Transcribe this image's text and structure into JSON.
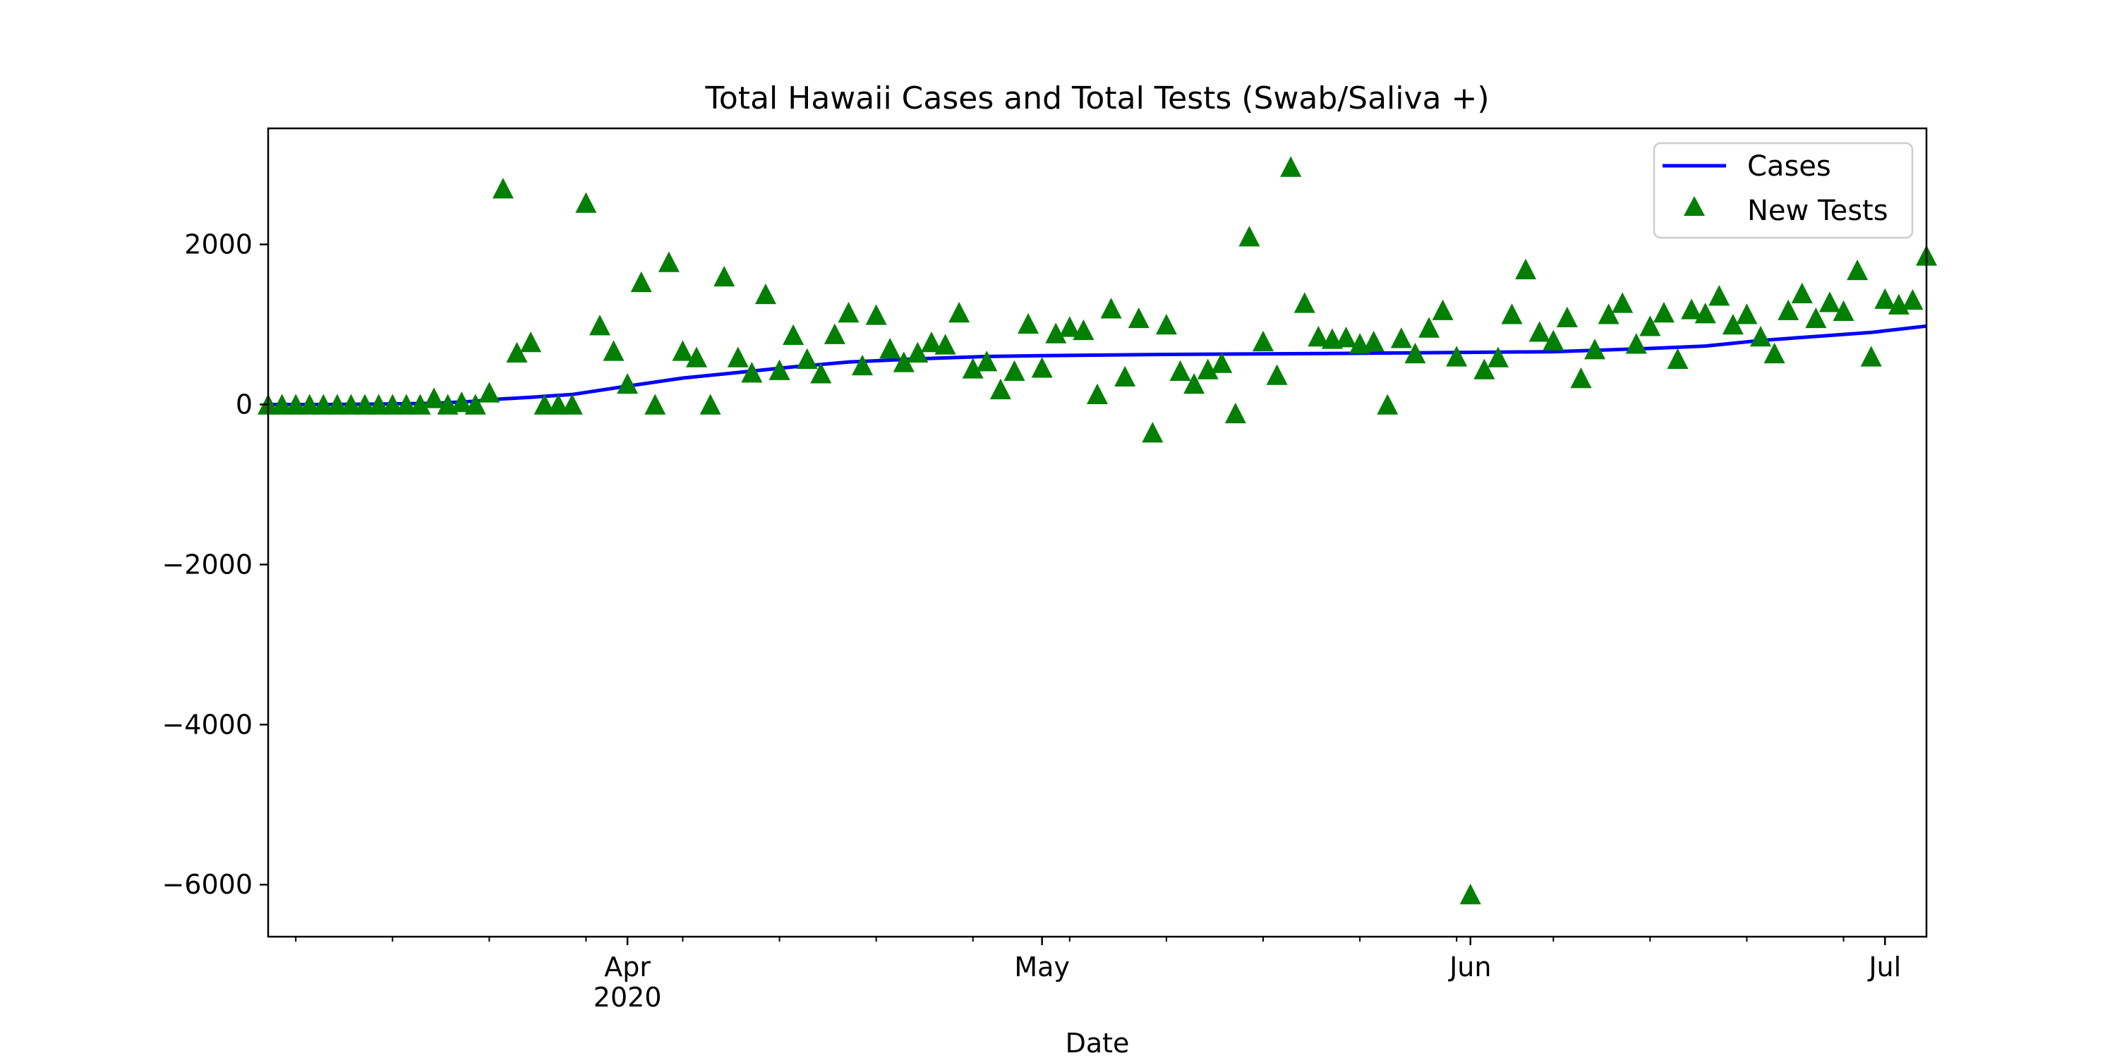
{
  "chart_data": {
    "type": "line",
    "title": "Total Hawaii Cases and Total Tests (Swab/Saliva +)",
    "xlabel": "Date",
    "ylabel": "",
    "x_range": [
      "2020-03-06",
      "2020-07-04"
    ],
    "ylim": [
      -6650,
      3450
    ],
    "y_ticks": [
      2000,
      0,
      -2000,
      -4000,
      -6000
    ],
    "y_tick_labels": [
      "2000",
      "0",
      "−2000",
      "−4000",
      "−6000"
    ],
    "x_major_ticks": [
      {
        "date": "2020-04-01",
        "label": "Apr",
        "sublabel": "2020"
      },
      {
        "date": "2020-05-01",
        "label": "May",
        "sublabel": ""
      },
      {
        "date": "2020-06-01",
        "label": "Jun",
        "sublabel": ""
      },
      {
        "date": "2020-07-01",
        "label": "Jul",
        "sublabel": ""
      }
    ],
    "x_minor_ticks": [
      "2020-03-08",
      "2020-03-15",
      "2020-03-22",
      "2020-03-29",
      "2020-04-05",
      "2020-04-12",
      "2020-04-19",
      "2020-04-26",
      "2020-05-03",
      "2020-05-10",
      "2020-05-17",
      "2020-05-24",
      "2020-05-31",
      "2020-06-07",
      "2020-06-14",
      "2020-06-21",
      "2020-06-28"
    ],
    "grid": false,
    "legend_position": "top-right",
    "series": [
      {
        "name": "Cases",
        "kind": "line",
        "color": "#0000ff",
        "points": [
          {
            "x": "2020-03-06",
            "y": 0
          },
          {
            "x": "2020-03-10",
            "y": 0
          },
          {
            "x": "2020-03-14",
            "y": 5
          },
          {
            "x": "2020-03-18",
            "y": 15
          },
          {
            "x": "2020-03-21",
            "y": 40
          },
          {
            "x": "2020-03-22",
            "y": 60
          },
          {
            "x": "2020-03-25",
            "y": 90
          },
          {
            "x": "2020-03-28",
            "y": 125
          },
          {
            "x": "2020-04-01",
            "y": 230
          },
          {
            "x": "2020-04-05",
            "y": 330
          },
          {
            "x": "2020-04-09",
            "y": 400
          },
          {
            "x": "2020-04-13",
            "y": 470
          },
          {
            "x": "2020-04-17",
            "y": 530
          },
          {
            "x": "2020-04-22",
            "y": 570
          },
          {
            "x": "2020-04-27",
            "y": 600
          },
          {
            "x": "2020-05-01",
            "y": 610
          },
          {
            "x": "2020-05-10",
            "y": 625
          },
          {
            "x": "2020-05-20",
            "y": 635
          },
          {
            "x": "2020-05-31",
            "y": 650
          },
          {
            "x": "2020-06-07",
            "y": 660
          },
          {
            "x": "2020-06-14",
            "y": 700
          },
          {
            "x": "2020-06-18",
            "y": 730
          },
          {
            "x": "2020-06-22",
            "y": 800
          },
          {
            "x": "2020-06-26",
            "y": 850
          },
          {
            "x": "2020-06-30",
            "y": 900
          },
          {
            "x": "2020-07-04",
            "y": 980
          }
        ]
      },
      {
        "name": "New Tests",
        "kind": "scatter",
        "marker": "triangle",
        "color": "#008000",
        "points": [
          {
            "x": "2020-03-06",
            "y": 0
          },
          {
            "x": "2020-03-07",
            "y": 0
          },
          {
            "x": "2020-03-08",
            "y": 0
          },
          {
            "x": "2020-03-09",
            "y": 0
          },
          {
            "x": "2020-03-10",
            "y": 0
          },
          {
            "x": "2020-03-11",
            "y": 0
          },
          {
            "x": "2020-03-12",
            "y": 0
          },
          {
            "x": "2020-03-13",
            "y": 0
          },
          {
            "x": "2020-03-14",
            "y": 0
          },
          {
            "x": "2020-03-15",
            "y": 0
          },
          {
            "x": "2020-03-16",
            "y": 0
          },
          {
            "x": "2020-03-17",
            "y": 0
          },
          {
            "x": "2020-03-18",
            "y": 80
          },
          {
            "x": "2020-03-19",
            "y": 0
          },
          {
            "x": "2020-03-20",
            "y": 30
          },
          {
            "x": "2020-03-21",
            "y": 0
          },
          {
            "x": "2020-03-22",
            "y": 150
          },
          {
            "x": "2020-03-23",
            "y": 2700
          },
          {
            "x": "2020-03-24",
            "y": 650
          },
          {
            "x": "2020-03-25",
            "y": 780
          },
          {
            "x": "2020-03-26",
            "y": 0
          },
          {
            "x": "2020-03-27",
            "y": 0
          },
          {
            "x": "2020-03-28",
            "y": 0
          },
          {
            "x": "2020-03-29",
            "y": 2520
          },
          {
            "x": "2020-03-30",
            "y": 990
          },
          {
            "x": "2020-03-31",
            "y": 670
          },
          {
            "x": "2020-04-01",
            "y": 260
          },
          {
            "x": "2020-04-02",
            "y": 1530
          },
          {
            "x": "2020-04-03",
            "y": 0
          },
          {
            "x": "2020-04-04",
            "y": 1780
          },
          {
            "x": "2020-04-05",
            "y": 670
          },
          {
            "x": "2020-04-06",
            "y": 590
          },
          {
            "x": "2020-04-07",
            "y": 0
          },
          {
            "x": "2020-04-08",
            "y": 1600
          },
          {
            "x": "2020-04-09",
            "y": 590
          },
          {
            "x": "2020-04-10",
            "y": 400
          },
          {
            "x": "2020-04-11",
            "y": 1380
          },
          {
            "x": "2020-04-12",
            "y": 430
          },
          {
            "x": "2020-04-13",
            "y": 870
          },
          {
            "x": "2020-04-14",
            "y": 570
          },
          {
            "x": "2020-04-15",
            "y": 390
          },
          {
            "x": "2020-04-16",
            "y": 880
          },
          {
            "x": "2020-04-17",
            "y": 1150
          },
          {
            "x": "2020-04-18",
            "y": 490
          },
          {
            "x": "2020-04-19",
            "y": 1120
          },
          {
            "x": "2020-04-20",
            "y": 700
          },
          {
            "x": "2020-04-21",
            "y": 530
          },
          {
            "x": "2020-04-22",
            "y": 650
          },
          {
            "x": "2020-04-23",
            "y": 780
          },
          {
            "x": "2020-04-24",
            "y": 750
          },
          {
            "x": "2020-04-25",
            "y": 1150
          },
          {
            "x": "2020-04-26",
            "y": 450
          },
          {
            "x": "2020-04-27",
            "y": 540
          },
          {
            "x": "2020-04-28",
            "y": 190
          },
          {
            "x": "2020-04-29",
            "y": 420
          },
          {
            "x": "2020-04-30",
            "y": 1010
          },
          {
            "x": "2020-05-01",
            "y": 460
          },
          {
            "x": "2020-05-02",
            "y": 890
          },
          {
            "x": "2020-05-03",
            "y": 970
          },
          {
            "x": "2020-05-04",
            "y": 930
          },
          {
            "x": "2020-05-05",
            "y": 130
          },
          {
            "x": "2020-05-06",
            "y": 1200
          },
          {
            "x": "2020-05-07",
            "y": 350
          },
          {
            "x": "2020-05-08",
            "y": 1080
          },
          {
            "x": "2020-05-09",
            "y": -350
          },
          {
            "x": "2020-05-10",
            "y": 1000
          },
          {
            "x": "2020-05-11",
            "y": 420
          },
          {
            "x": "2020-05-12",
            "y": 260
          },
          {
            "x": "2020-05-13",
            "y": 440
          },
          {
            "x": "2020-05-14",
            "y": 520
          },
          {
            "x": "2020-05-15",
            "y": -110
          },
          {
            "x": "2020-05-16",
            "y": 2100
          },
          {
            "x": "2020-05-17",
            "y": 790
          },
          {
            "x": "2020-05-18",
            "y": 370
          },
          {
            "x": "2020-05-19",
            "y": 2970
          },
          {
            "x": "2020-05-20",
            "y": 1270
          },
          {
            "x": "2020-05-21",
            "y": 850
          },
          {
            "x": "2020-05-22",
            "y": 820
          },
          {
            "x": "2020-05-23",
            "y": 840
          },
          {
            "x": "2020-05-24",
            "y": 760
          },
          {
            "x": "2020-05-25",
            "y": 790
          },
          {
            "x": "2020-05-26",
            "y": 0
          },
          {
            "x": "2020-05-27",
            "y": 830
          },
          {
            "x": "2020-05-28",
            "y": 640
          },
          {
            "x": "2020-05-29",
            "y": 960
          },
          {
            "x": "2020-05-30",
            "y": 1180
          },
          {
            "x": "2020-05-31",
            "y": 600
          },
          {
            "x": "2020-06-01",
            "y": -6120
          },
          {
            "x": "2020-06-02",
            "y": 440
          },
          {
            "x": "2020-06-03",
            "y": 590
          },
          {
            "x": "2020-06-04",
            "y": 1130
          },
          {
            "x": "2020-06-05",
            "y": 1690
          },
          {
            "x": "2020-06-06",
            "y": 910
          },
          {
            "x": "2020-06-07",
            "y": 800
          },
          {
            "x": "2020-06-08",
            "y": 1090
          },
          {
            "x": "2020-06-09",
            "y": 330
          },
          {
            "x": "2020-06-10",
            "y": 690
          },
          {
            "x": "2020-06-11",
            "y": 1130
          },
          {
            "x": "2020-06-12",
            "y": 1270
          },
          {
            "x": "2020-06-13",
            "y": 760
          },
          {
            "x": "2020-06-14",
            "y": 980
          },
          {
            "x": "2020-06-15",
            "y": 1150
          },
          {
            "x": "2020-06-16",
            "y": 570
          },
          {
            "x": "2020-06-17",
            "y": 1190
          },
          {
            "x": "2020-06-18",
            "y": 1140
          },
          {
            "x": "2020-06-19",
            "y": 1360
          },
          {
            "x": "2020-06-20",
            "y": 1000
          },
          {
            "x": "2020-06-21",
            "y": 1130
          },
          {
            "x": "2020-06-22",
            "y": 850
          },
          {
            "x": "2020-06-23",
            "y": 640
          },
          {
            "x": "2020-06-24",
            "y": 1180
          },
          {
            "x": "2020-06-25",
            "y": 1390
          },
          {
            "x": "2020-06-26",
            "y": 1080
          },
          {
            "x": "2020-06-27",
            "y": 1280
          },
          {
            "x": "2020-06-28",
            "y": 1170
          },
          {
            "x": "2020-06-29",
            "y": 1680
          },
          {
            "x": "2020-06-30",
            "y": 600
          },
          {
            "x": "2020-07-01",
            "y": 1320
          },
          {
            "x": "2020-07-02",
            "y": 1250
          },
          {
            "x": "2020-07-03",
            "y": 1310
          },
          {
            "x": "2020-07-04",
            "y": 1860
          }
        ]
      }
    ]
  }
}
